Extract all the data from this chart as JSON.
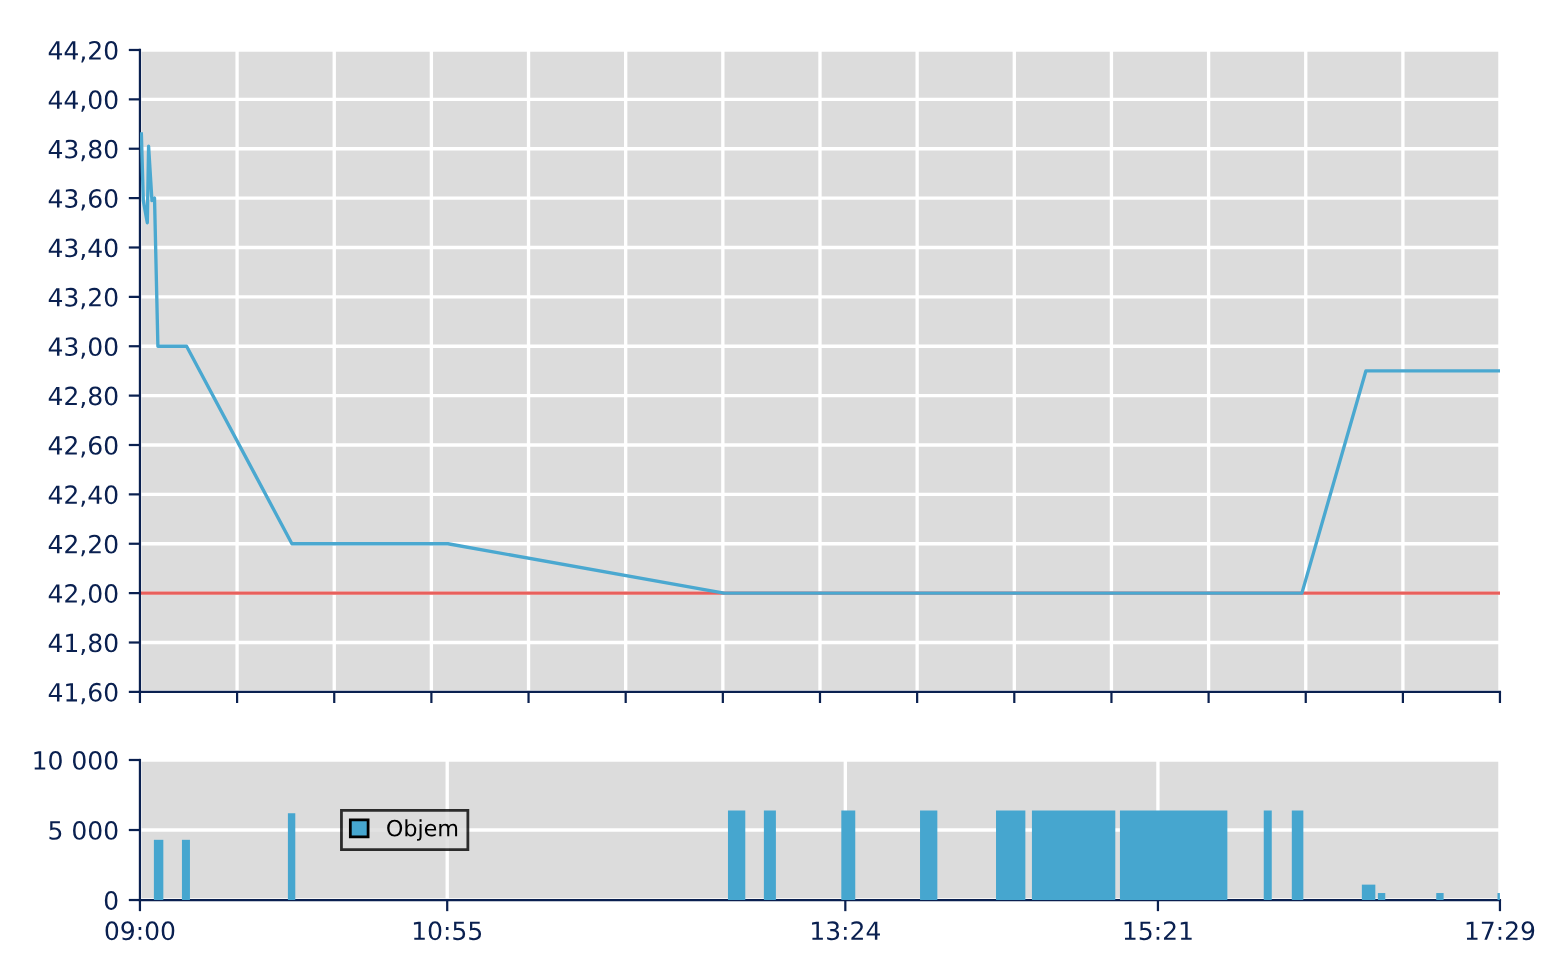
{
  "chart_data": [
    {
      "type": "line",
      "x": [
        9.009,
        9.021,
        9.046,
        9.054,
        9.075,
        9.091,
        9.112,
        9.291,
        9.948,
        10.921,
        12.643,
        16.248,
        16.647,
        17.483
      ],
      "series": [
        {
          "color": "#4aa8d0",
          "values": [
            43.86,
            43.59,
            43.5,
            43.81,
            43.59,
            43.6,
            43.0,
            43.0,
            42.2,
            42.2,
            42.0,
            42.0,
            42.9,
            42.9
          ]
        }
      ],
      "xlim": [
        9,
        17.4833
      ],
      "xticks": [
        {
          "value": 9.0,
          "label": null
        },
        {
          "value": 9.606,
          "label": null
        },
        {
          "value": 10.212,
          "label": null
        },
        {
          "value": 10.818,
          "label": null
        },
        {
          "value": 11.424,
          "label": null
        },
        {
          "value": 12.03,
          "label": null
        },
        {
          "value": 12.636,
          "label": null
        },
        {
          "value": 13.242,
          "label": null
        },
        {
          "value": 13.848,
          "label": null
        },
        {
          "value": 14.454,
          "label": null
        },
        {
          "value": 15.06,
          "label": null
        },
        {
          "value": 15.666,
          "label": null
        },
        {
          "value": 16.272,
          "label": null
        },
        {
          "value": 16.878,
          "label": null
        },
        {
          "value": 17.4833,
          "label": null
        }
      ],
      "ylim": [
        41.6,
        44.2
      ],
      "yticks": [
        {
          "value": 41.6,
          "label": "41,60"
        },
        {
          "value": 41.8,
          "label": "41,80"
        },
        {
          "value": 42.0,
          "label": "42,00"
        },
        {
          "value": 42.2,
          "label": "42,20"
        },
        {
          "value": 42.4,
          "label": "42,40"
        },
        {
          "value": 42.6,
          "label": "42,60"
        },
        {
          "value": 42.8,
          "label": "42,80"
        },
        {
          "value": 43.0,
          "label": "43,00"
        },
        {
          "value": 43.2,
          "label": "43,20"
        },
        {
          "value": 43.4,
          "label": "43,40"
        },
        {
          "value": 43.6,
          "label": "43,60"
        },
        {
          "value": 43.8,
          "label": "43,80"
        },
        {
          "value": 44.0,
          "label": "44,00"
        },
        {
          "value": 44.2,
          "label": "44,20"
        }
      ],
      "ref_lines": [
        {
          "axis": "y",
          "value": 42.0,
          "color": "#e8605c"
        }
      ],
      "grid": true,
      "tick_labels": "y"
    },
    {
      "type": "histogram",
      "series": [
        {
          "name": "Objem",
          "color": "#46a6cf",
          "values": [
            4300,
            0,
            4300,
            0,
            6200,
            0,
            6400,
            0,
            6400,
            0,
            6400,
            0,
            6400,
            0,
            6400,
            0,
            6400,
            0,
            6400,
            0,
            6400,
            0,
            6400,
            0,
            1100,
            0,
            500,
            0,
            500,
            0,
            500
          ]
        }
      ],
      "bins": [
        9.087,
        9.146,
        9.262,
        9.312,
        9.923,
        9.969,
        12.668,
        12.776,
        12.892,
        12.967,
        13.375,
        13.462,
        13.866,
        13.974,
        14.34,
        14.523,
        14.564,
        15.084,
        15.113,
        15.783,
        16.01,
        16.06,
        16.185,
        16.257,
        16.622,
        16.706,
        16.722,
        16.768,
        17.086,
        17.132,
        17.468,
        17.483
      ],
      "xlim": [
        9,
        17.4833
      ],
      "xticks": [
        {
          "value": 9.0,
          "label": "09:00"
        },
        {
          "value": 10.9167,
          "label": "10:55"
        },
        {
          "value": 13.4,
          "label": "13:24"
        },
        {
          "value": 15.35,
          "label": "15:21"
        },
        {
          "value": 17.4833,
          "label": "17:29"
        }
      ],
      "ylim": [
        0,
        10000
      ],
      "yticks": [
        {
          "value": 0,
          "label": "0"
        },
        {
          "value": 5000,
          "label": "5 000"
        },
        {
          "value": 10000,
          "label": "10 000"
        }
      ],
      "grid": true,
      "legend": "left"
    }
  ]
}
